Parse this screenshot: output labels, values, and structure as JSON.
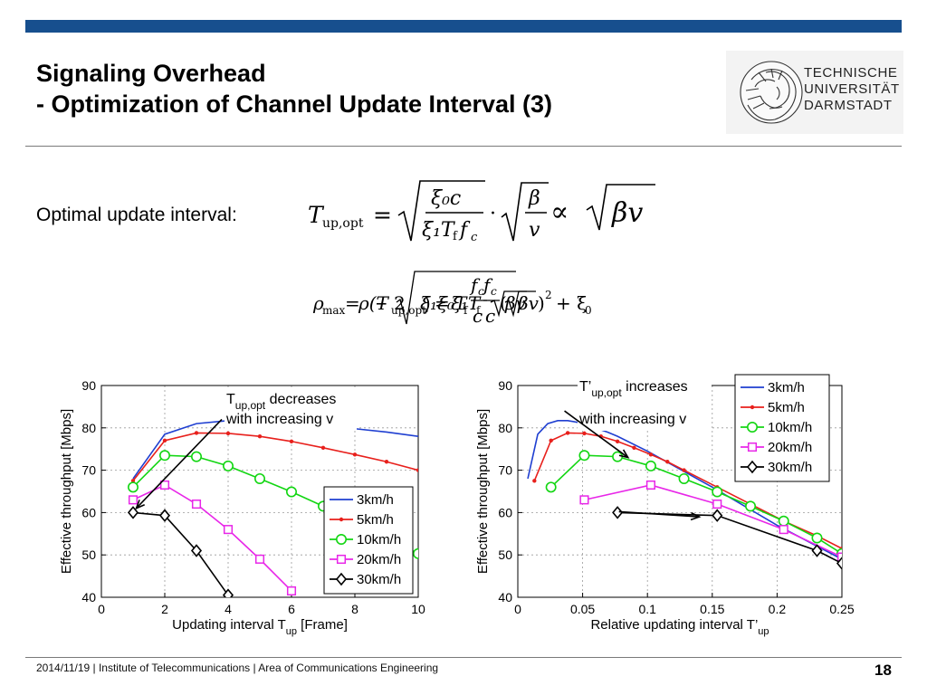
{
  "slide": {
    "title_line1": "Signaling Overhead",
    "title_line2": "- Optimization of Channel Update Interval (3)",
    "logo": {
      "line1": "TECHNISCHE",
      "line2": "UNIVERSITÄT",
      "line3": "DARMSTADT"
    },
    "optimal_label": "Optimal update interval:",
    "formula1": {
      "lhs": "T",
      "lhs_sub": "up,opt",
      "eq": "=",
      "num1": "ξ₀c",
      "den1": "ξ₁T",
      "den1_sub": "f",
      "den1_tail": "f",
      "den1_tail_sub": "c",
      "dot": "·",
      "num2": "β",
      "den2": "v",
      "prop": "∝",
      "rhs": "βv"
    },
    "formula2": {
      "rho": "ρ",
      "rho_sub": "max",
      "eq1": "=",
      "rho_of": "ρ(T",
      "rho_of_sub": "up,opt",
      "rho_of_close": ")",
      "eq2": "=",
      "xi1T": "ξ₁T",
      "xi1T_sub": "f",
      "fc": "f",
      "fc_sub": "c",
      "c": "c",
      "paren_open": "(",
      "bv1": "βv",
      "paren_close": ")",
      "sq": "2",
      "minus2": "− 2",
      "xixiT": "ξ₁ξ₀T",
      "xixiT_sub": "f",
      "fc2": "f",
      "fc2_sub": "c",
      "c2": "c",
      "bv2": "βv",
      "plus": "+ ξ",
      "plus_sub": "0"
    },
    "footer": {
      "text": "2014/11/19  |  Institute of Telecommunications   |  Area of Communications Engineering"
    },
    "page_number": "18"
  },
  "chart_data": [
    {
      "type": "line",
      "xlabel": "Updating interval T",
      "xlabel_sub": "up",
      "xlabel_tail": " [Frame]",
      "ylabel": "Effective throughput [Mbps]",
      "xlim": [
        0,
        10
      ],
      "ylim": [
        40,
        90
      ],
      "xticks": [
        0,
        2,
        4,
        6,
        8,
        10
      ],
      "yticks": [
        40,
        50,
        60,
        70,
        80,
        90
      ],
      "grid": true,
      "legend_position": "lower-right",
      "annotation": {
        "line1": "T",
        "line1_sub": "up,opt",
        "line1_tail": " decreases",
        "line2": "with increasing v"
      },
      "arrow": {
        "from": [
          3.8,
          82
        ],
        "to": [
          1.1,
          61
        ]
      },
      "series": [
        {
          "name": "3km/h",
          "color": "#1f3fd1",
          "marker": "none",
          "x": [
            1,
            2,
            3,
            4,
            5,
            6,
            7,
            8,
            9,
            10
          ],
          "y": [
            68,
            78.5,
            81,
            81.7,
            81.7,
            81.3,
            80.5,
            79.8,
            79,
            78
          ]
        },
        {
          "name": "5km/h",
          "color": "#e8201c",
          "marker": "dot",
          "x": [
            1,
            2,
            3,
            4,
            5,
            6,
            7,
            8,
            9,
            10
          ],
          "y": [
            67.5,
            77,
            78.8,
            78.7,
            78,
            76.8,
            75.3,
            73.7,
            72,
            70
          ]
        },
        {
          "name": "10km/h",
          "color": "#12d612",
          "marker": "circle",
          "x": [
            1,
            2,
            3,
            4,
            5,
            6,
            7,
            8,
            9,
            10
          ],
          "y": [
            66,
            73.5,
            73.2,
            71,
            68,
            64.9,
            61.5,
            58,
            54,
            50.3
          ]
        },
        {
          "name": "20km/h",
          "color": "#e826e8",
          "marker": "square",
          "x": [
            1,
            2,
            3,
            4,
            5,
            6
          ],
          "y": [
            63,
            66.5,
            62,
            56,
            49,
            41.5
          ]
        },
        {
          "name": "30km/h",
          "color": "#000000",
          "marker": "diamond",
          "x": [
            1,
            2,
            3,
            4
          ],
          "y": [
            60,
            59.3,
            51,
            40.5
          ]
        }
      ]
    },
    {
      "type": "line",
      "xlabel": "Relative updating interval T’",
      "xlabel_sub": "up",
      "xlabel_tail": "",
      "ylabel": "Effective throughput [Mbps]",
      "xlim": [
        0,
        0.25
      ],
      "ylim": [
        40,
        90
      ],
      "xticks": [
        0,
        0.05,
        0.1,
        0.15,
        0.2,
        0.25
      ],
      "xtick_labels": [
        "0",
        "0.05",
        "0.1",
        "0.15",
        "0.2",
        "0.25"
      ],
      "yticks": [
        40,
        50,
        60,
        70,
        80,
        90
      ],
      "grid": true,
      "legend_position": "top-right",
      "annotation": {
        "line1": "T’",
        "line1_sub": "up,opt",
        "line1_tail": " increases",
        "line2": "with increasing v"
      },
      "arrows": [
        {
          "from": [
            0.036,
            84
          ],
          "to": [
            0.085,
            73
          ]
        },
        {
          "from": [
            0.078,
            60.2
          ],
          "to": [
            0.14,
            59
          ]
        }
      ],
      "series": [
        {
          "name": "3km/h",
          "color": "#1f3fd1",
          "marker": "none",
          "x": [
            0.0077,
            0.0154,
            0.0231,
            0.0308,
            0.0385,
            0.0462,
            0.0538,
            0.0615,
            0.0692,
            0.0769,
            0.1,
            0.15,
            0.2,
            0.25
          ],
          "y": [
            68,
            78.5,
            81,
            81.7,
            81.7,
            81.3,
            80.5,
            79.8,
            79,
            78,
            74.5,
            66,
            57,
            49
          ]
        },
        {
          "name": "5km/h",
          "color": "#e8201c",
          "marker": "dot",
          "x": [
            0.0128,
            0.0256,
            0.0385,
            0.0513,
            0.0641,
            0.0769,
            0.0897,
            0.1026,
            0.1154,
            0.1282,
            0.1538,
            0.1795,
            0.2051,
            0.2308,
            0.25
          ],
          "y": [
            67.5,
            77,
            78.8,
            78.7,
            78,
            76.8,
            75.3,
            73.7,
            72,
            70,
            66,
            62,
            58,
            54.5,
            51.5
          ]
        },
        {
          "name": "10km/h",
          "color": "#12d612",
          "marker": "circle",
          "x": [
            0.0256,
            0.0513,
            0.0769,
            0.1026,
            0.1282,
            0.1538,
            0.1795,
            0.2051,
            0.2308,
            0.25
          ],
          "y": [
            66,
            73.5,
            73.2,
            71,
            68,
            64.9,
            61.5,
            58,
            54,
            50.3
          ]
        },
        {
          "name": "20km/h",
          "color": "#e826e8",
          "marker": "square",
          "x": [
            0.0513,
            0.1026,
            0.1538,
            0.2051,
            0.25
          ],
          "y": [
            63,
            66.5,
            62,
            56,
            49.5
          ]
        },
        {
          "name": "30km/h",
          "color": "#000000",
          "marker": "diamond",
          "x": [
            0.0769,
            0.1538,
            0.2308,
            0.25
          ],
          "y": [
            60,
            59.3,
            51,
            48
          ]
        }
      ]
    }
  ]
}
